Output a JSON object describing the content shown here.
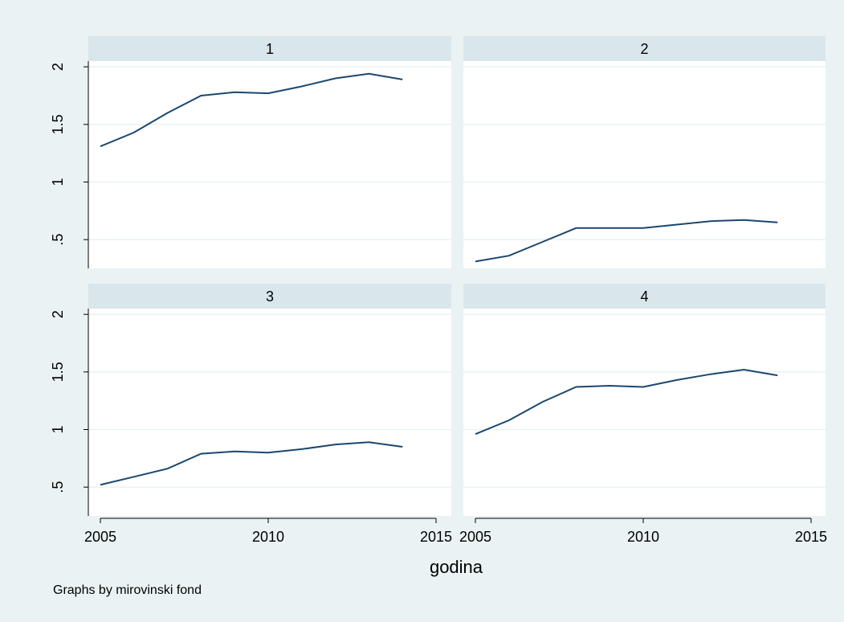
{
  "chart_data": {
    "type": "line",
    "layout": "2x2 facets",
    "xlabel": "godina",
    "note": "Graphs by mirovinski fond",
    "x_ticks": [
      2005,
      2010,
      2015
    ],
    "x_tick_labels": [
      "2005",
      "2010",
      "2015"
    ],
    "y_ticks": [
      0.5,
      1,
      1.5,
      2
    ],
    "y_tick_labels": [
      ".5",
      "1",
      "1.5",
      "2"
    ],
    "xlim": [
      2005,
      2015
    ],
    "ylim": [
      0.25,
      2.05
    ],
    "grid": true,
    "colors": {
      "line": "#1a476f",
      "strip": "#d9e6eb",
      "plot_background": "#ffffff",
      "outer_background": "#eaf2f3",
      "grid": "#eaf2f3"
    },
    "facets": [
      {
        "label": "1",
        "x": [
          2005,
          2006,
          2007,
          2008,
          2009,
          2010,
          2011,
          2012,
          2013,
          2014
        ],
        "values": [
          1.31,
          1.43,
          1.6,
          1.75,
          1.78,
          1.77,
          1.83,
          1.9,
          1.94,
          1.89
        ]
      },
      {
        "label": "2",
        "x": [
          2005,
          2006,
          2007,
          2008,
          2009,
          2010,
          2011,
          2012,
          2013,
          2014
        ],
        "values": [
          0.31,
          0.36,
          0.48,
          0.6,
          0.6,
          0.6,
          0.63,
          0.66,
          0.67,
          0.65
        ]
      },
      {
        "label": "3",
        "x": [
          2005,
          2006,
          2007,
          2008,
          2009,
          2010,
          2011,
          2012,
          2013,
          2014
        ],
        "values": [
          0.52,
          0.59,
          0.66,
          0.79,
          0.81,
          0.8,
          0.83,
          0.87,
          0.89,
          0.85
        ]
      },
      {
        "label": "4",
        "x": [
          2005,
          2006,
          2007,
          2008,
          2009,
          2010,
          2011,
          2012,
          2013,
          2014
        ],
        "values": [
          0.96,
          1.08,
          1.24,
          1.37,
          1.38,
          1.37,
          1.43,
          1.48,
          1.52,
          1.47
        ]
      }
    ]
  }
}
